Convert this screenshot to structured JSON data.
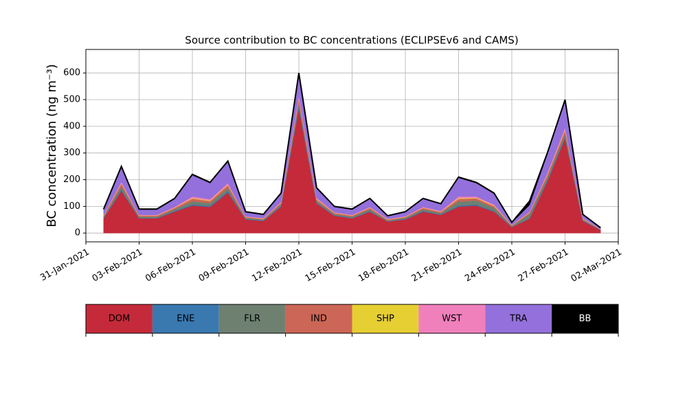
{
  "chart_data": {
    "type": "stacked_area",
    "title": "Source contribution to BC concentrations (ECLIPSEv6 and CAMS)",
    "y_label": "BC concentration (ng m⁻³)",
    "x": [
      "2021-02-01",
      "2021-02-02",
      "2021-02-03",
      "2021-02-04",
      "2021-02-05",
      "2021-02-06",
      "2021-02-07",
      "2021-02-08",
      "2021-02-09",
      "2021-02-10",
      "2021-02-11",
      "2021-02-12",
      "2021-02-13",
      "2021-02-14",
      "2021-02-15",
      "2021-02-16",
      "2021-02-17",
      "2021-02-18",
      "2021-02-19",
      "2021-02-20",
      "2021-02-21",
      "2021-02-22",
      "2021-02-23",
      "2021-02-24",
      "2021-02-25",
      "2021-02-26",
      "2021-02-27",
      "2021-02-28",
      "2021-03-01"
    ],
    "series": [
      {
        "name": "DOM",
        "color": "#c42a3a",
        "values": [
          55,
          158,
          55,
          55,
          80,
          103,
          98,
          152,
          51,
          45,
          99,
          464,
          111,
          65,
          55,
          80,
          43,
          51,
          80,
          68,
          99,
          103,
          80,
          22,
          54,
          192,
          354,
          45,
          11
        ]
      },
      {
        "name": "ENE",
        "color": "#3a78b0",
        "values": [
          2,
          5,
          2,
          2,
          3,
          4,
          4,
          5,
          2,
          2,
          3,
          8,
          3,
          2,
          2,
          3,
          1,
          2,
          3,
          2,
          4,
          4,
          3,
          1,
          2,
          5,
          6,
          2,
          1
        ]
      },
      {
        "name": "FLR",
        "color": "#6e8070",
        "values": [
          4,
          12,
          4,
          4,
          6,
          12,
          10,
          12,
          4,
          3,
          6,
          15,
          6,
          4,
          4,
          6,
          3,
          4,
          6,
          5,
          15,
          15,
          12,
          3,
          15,
          10,
          12,
          3,
          1
        ]
      },
      {
        "name": "IND",
        "color": "#cc6656",
        "values": [
          4,
          10,
          4,
          4,
          5,
          10,
          8,
          10,
          3,
          3,
          5,
          15,
          6,
          4,
          4,
          5,
          3,
          3,
          5,
          4,
          10,
          8,
          6,
          2,
          5,
          10,
          12,
          3,
          1
        ]
      },
      {
        "name": "SHP",
        "color": "#e6cf32",
        "values": [
          1,
          2,
          1,
          1,
          1,
          2,
          2,
          2,
          1,
          1,
          1,
          3,
          2,
          1,
          1,
          1,
          1,
          1,
          1,
          1,
          3,
          2,
          2,
          1,
          1,
          2,
          3,
          1,
          0
        ]
      },
      {
        "name": "WST",
        "color": "#f080bb",
        "values": [
          2,
          5,
          2,
          2,
          3,
          6,
          5,
          6,
          2,
          2,
          3,
          10,
          4,
          2,
          2,
          3,
          2,
          2,
          3,
          3,
          6,
          5,
          4,
          1,
          3,
          6,
          8,
          2,
          1
        ]
      },
      {
        "name": "TRA",
        "color": "#9370db",
        "values": [
          20,
          55,
          20,
          20,
          30,
          80,
          60,
          80,
          15,
          12,
          30,
          80,
          35,
          20,
          20,
          30,
          10,
          15,
          30,
          25,
          70,
          50,
          40,
          8,
          25,
          70,
          100,
          12,
          4
        ]
      },
      {
        "name": "BB",
        "color": "#000000",
        "values": [
          2,
          3,
          2,
          2,
          2,
          3,
          3,
          3,
          2,
          2,
          3,
          5,
          3,
          2,
          2,
          2,
          2,
          2,
          2,
          2,
          3,
          3,
          3,
          2,
          15,
          5,
          5,
          2,
          1
        ]
      }
    ],
    "xlim": [
      "2021-01-31",
      "2021-03-02"
    ],
    "xticks": [
      {
        "value": "2021-01-31",
        "label": "31-Jan-2021"
      },
      {
        "value": "2021-02-03",
        "label": "03-Feb-2021"
      },
      {
        "value": "2021-02-06",
        "label": "06-Feb-2021"
      },
      {
        "value": "2021-02-09",
        "label": "09-Feb-2021"
      },
      {
        "value": "2021-02-12",
        "label": "12-Feb-2021"
      },
      {
        "value": "2021-02-15",
        "label": "15-Feb-2021"
      },
      {
        "value": "2021-02-18",
        "label": "18-Feb-2021"
      },
      {
        "value": "2021-02-21",
        "label": "21-Feb-2021"
      },
      {
        "value": "2021-02-24",
        "label": "24-Feb-2021"
      },
      {
        "value": "2021-02-27",
        "label": "27-Feb-2021"
      },
      {
        "value": "2021-03-02",
        "label": "02-Mar-2021"
      }
    ],
    "ylim": [
      -33,
      688
    ],
    "yticks": [
      0,
      100,
      200,
      300,
      400,
      500,
      600
    ],
    "grid": true
  }
}
